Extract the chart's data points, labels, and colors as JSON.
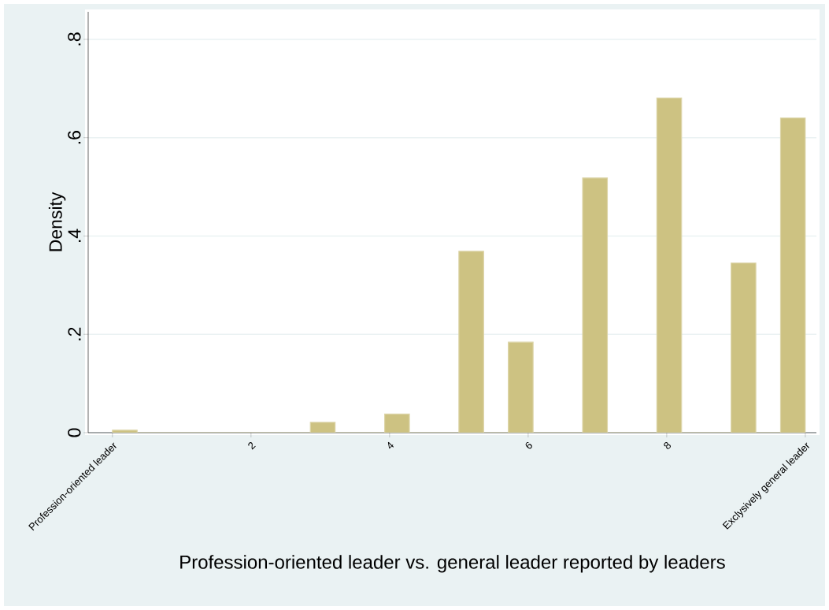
{
  "chart_data": {
    "type": "histogram",
    "xlabel": "Profession-oriented leader vs. general leader reported by leaders",
    "ylabel": "Density",
    "bins": [
      0,
      0.357,
      0.714,
      1.071,
      1.429,
      1.786,
      2.143,
      2.5,
      2.857,
      3.214,
      3.571,
      3.929,
      4.286,
      4.643,
      5,
      5.357,
      5.714,
      6.071,
      6.429,
      6.786,
      7.143,
      7.5,
      7.857,
      8.214,
      8.571,
      8.929,
      9.286,
      9.643,
      10
    ],
    "values": [
      0.005,
      0,
      0,
      0,
      0,
      0,
      0,
      0,
      0.021,
      0,
      0,
      0.038,
      0,
      0,
      0.369,
      0,
      0.184,
      0,
      0,
      0.518,
      0,
      0,
      0.681,
      0,
      0,
      0.345,
      0,
      0.64
    ],
    "color": "#cdc282",
    "xlim": [
      -0.35,
      10.16
    ],
    "ylim": [
      0,
      0.856
    ],
    "xticks": [
      {
        "value": 0,
        "label": "Profession-oriented leader"
      },
      2,
      4,
      6,
      8,
      {
        "value": 10,
        "label": "Exclysively general leader"
      }
    ],
    "yticks": [
      0,
      {
        "value": 0.2,
        "label": ".2"
      },
      {
        "value": 0.4,
        "label": ".4"
      },
      {
        "value": 0.6,
        "label": ".6"
      },
      {
        "value": 0.8,
        "label": ".8"
      }
    ],
    "grid": "y"
  }
}
